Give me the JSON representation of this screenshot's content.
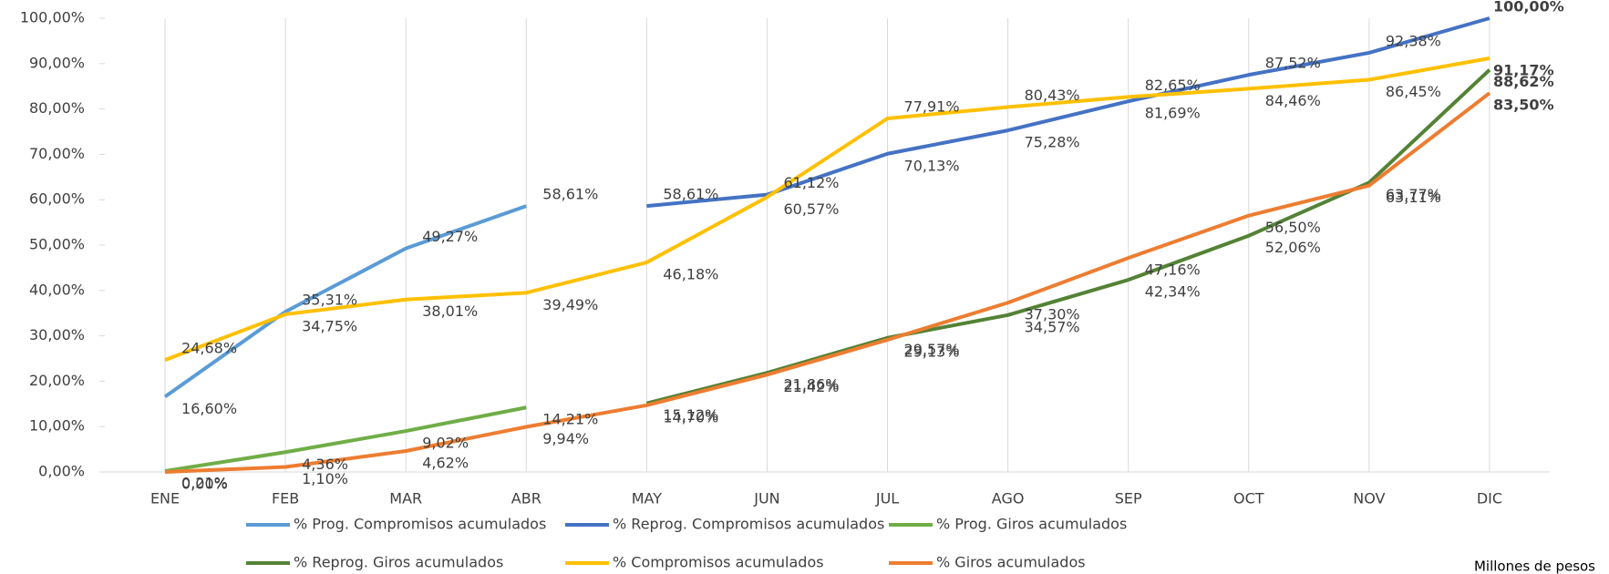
{
  "chart_data": {
    "type": "line",
    "categories": [
      "ENE",
      "FEB",
      "MAR",
      "ABR",
      "MAY",
      "JUN",
      "JUL",
      "AGO",
      "SEP",
      "OCT",
      "NOV",
      "DIC"
    ],
    "ylim": [
      0,
      100
    ],
    "yticks": [
      {
        "value": 0,
        "label": "0,00%"
      },
      {
        "value": 10,
        "label": "10,00%"
      },
      {
        "value": 20,
        "label": "20,00%"
      },
      {
        "value": 30,
        "label": "30,00%"
      },
      {
        "value": 40,
        "label": "40,00%"
      },
      {
        "value": 50,
        "label": "50,00%"
      },
      {
        "value": 60,
        "label": "60,00%"
      },
      {
        "value": 70,
        "label": "70,00%"
      },
      {
        "value": 80,
        "label": "80,00%"
      },
      {
        "value": 90,
        "label": "90,00%"
      },
      {
        "value": 100,
        "label": "100,00%"
      }
    ],
    "grid": "x",
    "series": [
      {
        "name": "% Prog. Compromisos acumulados",
        "color": "#5b9bd5",
        "values": [
          16.6,
          35.31,
          49.27,
          58.61,
          null,
          null,
          null,
          null,
          null,
          null,
          null,
          null
        ],
        "value_labels": [
          "16,60%",
          "35,31%",
          "49,27%",
          "58,61%",
          null,
          null,
          null,
          null,
          null,
          null,
          null,
          null
        ]
      },
      {
        "name": "% Reprog. Compromisos acumulados",
        "color": "#4472c4",
        "values": [
          null,
          null,
          null,
          null,
          58.61,
          61.12,
          70.13,
          75.28,
          81.69,
          87.52,
          92.38,
          100
        ],
        "value_labels": [
          null,
          null,
          null,
          null,
          "58,61%",
          "61,12%",
          "70,13%",
          "75,28%",
          "81,69%",
          "87,52%",
          "92,38%",
          "100,00%"
        ]
      },
      {
        "name": "% Prog. Giros acumulados",
        "color": "#70ad47",
        "values": [
          0.21,
          4.36,
          9.02,
          14.21,
          null,
          null,
          null,
          null,
          null,
          null,
          null,
          null
        ],
        "value_labels": [
          "0,21%",
          "4,36%",
          "9,02%",
          "14,21%",
          null,
          null,
          null,
          null,
          null,
          null,
          null,
          null
        ]
      },
      {
        "name": "% Reprog. Giros acumulados",
        "color": "#548235",
        "values": [
          null,
          null,
          null,
          null,
          15.12,
          21.86,
          29.57,
          34.57,
          42.34,
          52.06,
          63.77,
          88.62
        ],
        "value_labels": [
          null,
          null,
          null,
          null,
          "15,12%",
          "21,86%",
          "29,57%",
          "34,57%",
          "42,34%",
          "52,06%",
          "63,77%",
          "88,62%"
        ]
      },
      {
        "name": "% Compromisos acumulados",
        "color": "#ffc000",
        "values": [
          24.68,
          34.75,
          38.01,
          39.49,
          46.18,
          60.57,
          77.91,
          80.43,
          82.65,
          84.46,
          86.45,
          91.17
        ],
        "value_labels": [
          "24,68%",
          "34,75%",
          "38,01%",
          "39,49%",
          "46,18%",
          "60,57%",
          "77,91%",
          "80,43%",
          "82,65%",
          "84,46%",
          "86,45%",
          "91,17%"
        ]
      },
      {
        "name": "% Giros acumulados",
        "color": "#ed7d31",
        "values": [
          0,
          1.1,
          4.62,
          9.94,
          14.7,
          21.42,
          29.13,
          37.3,
          47.16,
          56.5,
          63.11,
          83.5
        ],
        "value_labels": [
          "0,00%",
          "1,10%",
          "4,62%",
          "9,94%",
          "14,70%",
          "21,42%",
          "29,13%",
          "37,30%",
          "47,16%",
          "56,50%",
          "63,11%",
          "83,50%"
        ]
      }
    ],
    "annotation": "Millones de pesos"
  }
}
